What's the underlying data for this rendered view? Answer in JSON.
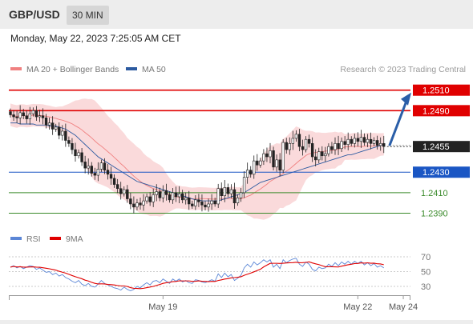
{
  "header": {
    "pair": "GBP/USD",
    "timeframe": "30 MIN"
  },
  "date_text": "Monday, May 22, 2023 7:25:05 AM CET",
  "colors": {
    "ma20": "#f08080",
    "band_fill": "#fadadb",
    "ma50": "#2c5aa0",
    "up": "#ffffff",
    "down": "#222222",
    "resistance": "#e00000",
    "pivot": "#1a56c4",
    "support": "#3a8a2a",
    "rsi": "#5b86d6",
    "rsi_ma": "#e00000",
    "forecast_arrow": "#2a5ea8"
  },
  "chart_data": [
    {
      "type": "candlestick",
      "title": "GBP/USD 30 MIN",
      "legend": [
        {
          "name": "MA 20 + Bollinger Bands",
          "color": "#f08080"
        },
        {
          "name": "MA 50",
          "color": "#2c5aa0"
        }
      ],
      "legend_position": "top-left",
      "source": "Research © 2023 Trading Central",
      "ylim": [
        1.238,
        1.2515
      ],
      "x_ticks": [
        {
          "label": "May 19",
          "index": 47
        },
        {
          "label": "May 22",
          "index": 107
        },
        {
          "label": "May 24",
          "index": 121
        }
      ],
      "last_price": {
        "label": "1.2455",
        "value": 1.2455
      },
      "levels": [
        {
          "label": "1.2510",
          "value": 1.251,
          "role": "resistance",
          "highlight": true
        },
        {
          "label": "1.2490",
          "value": 1.249,
          "role": "resistance",
          "highlight": false
        },
        {
          "label": "1.2430",
          "value": 1.243,
          "role": "pivot",
          "highlight": false
        },
        {
          "label": "1.2410",
          "value": 1.241,
          "role": "support",
          "highlight": false
        },
        {
          "label": "1.2390",
          "value": 1.239,
          "role": "support",
          "highlight": false
        }
      ],
      "forecast": {
        "from": 1.2455,
        "to": 1.251
      },
      "closes": [
        1.2486,
        1.2484,
        1.2483,
        1.2488,
        1.2485,
        1.2482,
        1.2487,
        1.249,
        1.2484,
        1.2485,
        1.2483,
        1.2476,
        1.2478,
        1.2472,
        1.2474,
        1.2466,
        1.247,
        1.2461,
        1.2458,
        1.2452,
        1.2446,
        1.2449,
        1.244,
        1.2434,
        1.2436,
        1.2429,
        1.2427,
        1.2433,
        1.2439,
        1.2432,
        1.2428,
        1.2424,
        1.2418,
        1.2414,
        1.2409,
        1.2413,
        1.2404,
        1.2399,
        1.2396,
        1.24,
        1.2398,
        1.2402,
        1.2406,
        1.2401,
        1.2408,
        1.2411,
        1.2405,
        1.2412,
        1.2408,
        1.2403,
        1.241,
        1.2406,
        1.2409,
        1.2403,
        1.2405,
        1.2399,
        1.2397,
        1.2403,
        1.2401,
        1.2398,
        1.2396,
        1.2399,
        1.2402,
        1.2399,
        1.2414,
        1.2407,
        1.2415,
        1.2409,
        1.2413,
        1.24,
        1.2405,
        1.241,
        1.2425,
        1.2432,
        1.2428,
        1.2441,
        1.2437,
        1.2441,
        1.2448,
        1.2445,
        1.2451,
        1.2435,
        1.2442,
        1.2432,
        1.2459,
        1.2452,
        1.2458,
        1.2463,
        1.2467,
        1.2455,
        1.2452,
        1.2462,
        1.2458,
        1.2445,
        1.2442,
        1.245,
        1.2446,
        1.2448,
        1.2455,
        1.2452,
        1.2458,
        1.2453,
        1.246,
        1.2457,
        1.2462,
        1.2458,
        1.2463,
        1.246,
        1.2464,
        1.2459,
        1.2462,
        1.2458,
        1.2461,
        1.2456,
        1.2458,
        1.2455
      ],
      "ma50": [
        1.2478,
        1.2478,
        1.2478,
        1.2477,
        1.2477,
        1.2477,
        1.2477,
        1.2477,
        1.2476,
        1.2476,
        1.2476,
        1.2476,
        1.2475,
        1.2475,
        1.2475,
        1.2474,
        1.2473,
        1.2472,
        1.247,
        1.2468,
        1.2466,
        1.2463,
        1.246,
        1.2457,
        1.2454,
        1.2451,
        1.2448,
        1.2445,
        1.2443,
        1.2441,
        1.2439,
        1.2437,
        1.2435,
        1.2433,
        1.2431,
        1.2429,
        1.2427,
        1.2425,
        1.2423,
        1.2421,
        1.242,
        1.2419,
        1.2418,
        1.2417,
        1.2416,
        1.2415,
        1.2414,
        1.2413,
        1.2412,
        1.2411,
        1.241,
        1.2409,
        1.2408,
        1.2407,
        1.2406,
        1.2405,
        1.2404,
        1.2403,
        1.2403,
        1.2402,
        1.2402,
        1.2402,
        1.2402,
        1.2402,
        1.2402,
        1.2403,
        1.2404,
        1.2405,
        1.2406,
        1.2407,
        1.2408,
        1.2409,
        1.241,
        1.2412,
        1.2414,
        1.2416,
        1.2418,
        1.242,
        1.2421,
        1.2422,
        1.2423,
        1.2424,
        1.2425,
        1.2426,
        1.2427,
        1.2428,
        1.2429,
        1.243,
        1.2431,
        1.2432,
        1.2433,
        1.2434,
        1.2435,
        1.2436,
        1.2437,
        1.2438,
        1.2439,
        1.244,
        1.2441,
        1.2442,
        1.2443,
        1.2444,
        1.2445,
        1.2446,
        1.2447,
        1.2447,
        1.2448,
        1.2449,
        1.245,
        1.2451,
        1.2452,
        1.2453,
        1.2454,
        1.2455,
        1.2456,
        1.2457
      ]
    },
    {
      "type": "line",
      "title": "RSI",
      "legend": [
        {
          "name": "RSI",
          "color": "#5b86d6"
        },
        {
          "name": "9MA",
          "color": "#e00000"
        }
      ],
      "legend_position": "top-left",
      "ylim": [
        20,
        80
      ],
      "y_ticks": [
        70,
        50,
        30
      ],
      "rsi": [
        56,
        58,
        55,
        57,
        54,
        56,
        58,
        57,
        53,
        55,
        52,
        49,
        50,
        46,
        48,
        44,
        46,
        42,
        40,
        37,
        35,
        38,
        33,
        31,
        34,
        30,
        29,
        33,
        38,
        34,
        32,
        30,
        28,
        27,
        25,
        29,
        26,
        24,
        26,
        30,
        28,
        32,
        35,
        32,
        37,
        38,
        35,
        40,
        37,
        34,
        40,
        37,
        40,
        36,
        38,
        35,
        34,
        39,
        38,
        36,
        35,
        37,
        39,
        37,
        47,
        42,
        48,
        43,
        46,
        38,
        41,
        45,
        55,
        60,
        56,
        63,
        59,
        62,
        66,
        63,
        66,
        56,
        60,
        54,
        66,
        62,
        65,
        67,
        68,
        60,
        57,
        63,
        60,
        53,
        51,
        56,
        54,
        55,
        60,
        57,
        62,
        58,
        63,
        60,
        64,
        60,
        64,
        61,
        64,
        59,
        62,
        58,
        61,
        56,
        58,
        55
      ]
    }
  ]
}
